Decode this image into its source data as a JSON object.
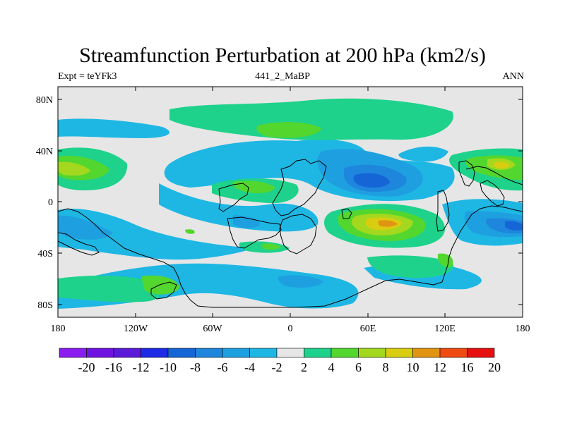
{
  "title": "Streamfunction Perturbation at 200 hPa (km2/s)",
  "subtitle_left": "Expt = teYFk3",
  "subtitle_center": "441_2_MaBP",
  "subtitle_right": "ANN",
  "lat_ticks": [
    "80N",
    "40N",
    "0",
    "40S",
    "80S"
  ],
  "lon_ticks": [
    "180",
    "120W",
    "60W",
    "0",
    "60E",
    "120E",
    "180"
  ],
  "colorbar": {
    "labels": [
      "-20",
      "-16",
      "-12",
      "-10",
      "-8",
      "-6",
      "-4",
      "-2",
      "2",
      "4",
      "6",
      "8",
      "10",
      "12",
      "16",
      "20"
    ],
    "colors": [
      "#8b1cf0",
      "#6f14e0",
      "#5a1ad8",
      "#1d2ae6",
      "#1565d6",
      "#1e86dc",
      "#1ea0e0",
      "#1eb7e4",
      "#e6e6e6",
      "#1ed28c",
      "#53d62e",
      "#a3d81e",
      "#d8cd10",
      "#e19412",
      "#ee4a12",
      "#e61010"
    ]
  },
  "colors": {
    "background": "#e6e6e6",
    "coastline": "#000000"
  }
}
